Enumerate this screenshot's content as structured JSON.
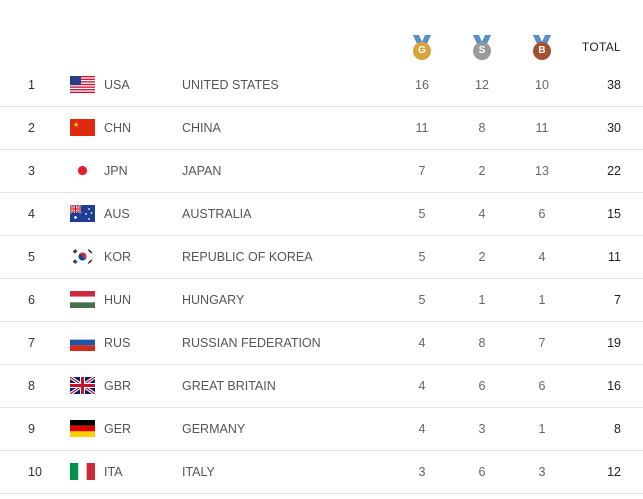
{
  "header": {
    "medals": [
      {
        "letter": "G",
        "color": "#d9a33a",
        "icon": "gold-medal-icon"
      },
      {
        "letter": "S",
        "color": "#9a9a9a",
        "icon": "silver-medal-icon"
      },
      {
        "letter": "B",
        "color": "#a4522e",
        "icon": "bronze-medal-icon"
      }
    ],
    "total_label": "TOTAL"
  },
  "rows": [
    {
      "rank": "1",
      "code": "USA",
      "country": "UNITED STATES",
      "gold": "16",
      "silver": "12",
      "bronze": "10",
      "total": "38",
      "flag": "usa-flag-icon"
    },
    {
      "rank": "2",
      "code": "CHN",
      "country": "CHINA",
      "gold": "11",
      "silver": "8",
      "bronze": "11",
      "total": "30",
      "flag": "china-flag-icon"
    },
    {
      "rank": "3",
      "code": "JPN",
      "country": "JAPAN",
      "gold": "7",
      "silver": "2",
      "bronze": "13",
      "total": "22",
      "flag": "japan-flag-icon"
    },
    {
      "rank": "4",
      "code": "AUS",
      "country": "AUSTRALIA",
      "gold": "5",
      "silver": "4",
      "bronze": "6",
      "total": "15",
      "flag": "australia-flag-icon"
    },
    {
      "rank": "5",
      "code": "KOR",
      "country": "REPUBLIC OF KOREA",
      "gold": "5",
      "silver": "2",
      "bronze": "4",
      "total": "11",
      "flag": "korea-flag-icon"
    },
    {
      "rank": "6",
      "code": "HUN",
      "country": "HUNGARY",
      "gold": "5",
      "silver": "1",
      "bronze": "1",
      "total": "7",
      "flag": "hungary-flag-icon"
    },
    {
      "rank": "7",
      "code": "RUS",
      "country": "RUSSIAN FEDERATION",
      "gold": "4",
      "silver": "8",
      "bronze": "7",
      "total": "19",
      "flag": "russia-flag-icon"
    },
    {
      "rank": "8",
      "code": "GBR",
      "country": "GREAT BRITAIN",
      "gold": "4",
      "silver": "6",
      "bronze": "6",
      "total": "16",
      "flag": "great-britain-flag-icon"
    },
    {
      "rank": "9",
      "code": "GER",
      "country": "GERMANY",
      "gold": "4",
      "silver": "3",
      "bronze": "1",
      "total": "8",
      "flag": "germany-flag-icon"
    },
    {
      "rank": "10",
      "code": "ITA",
      "country": "ITALY",
      "gold": "3",
      "silver": "6",
      "bronze": "3",
      "total": "12",
      "flag": "italy-flag-icon"
    }
  ]
}
